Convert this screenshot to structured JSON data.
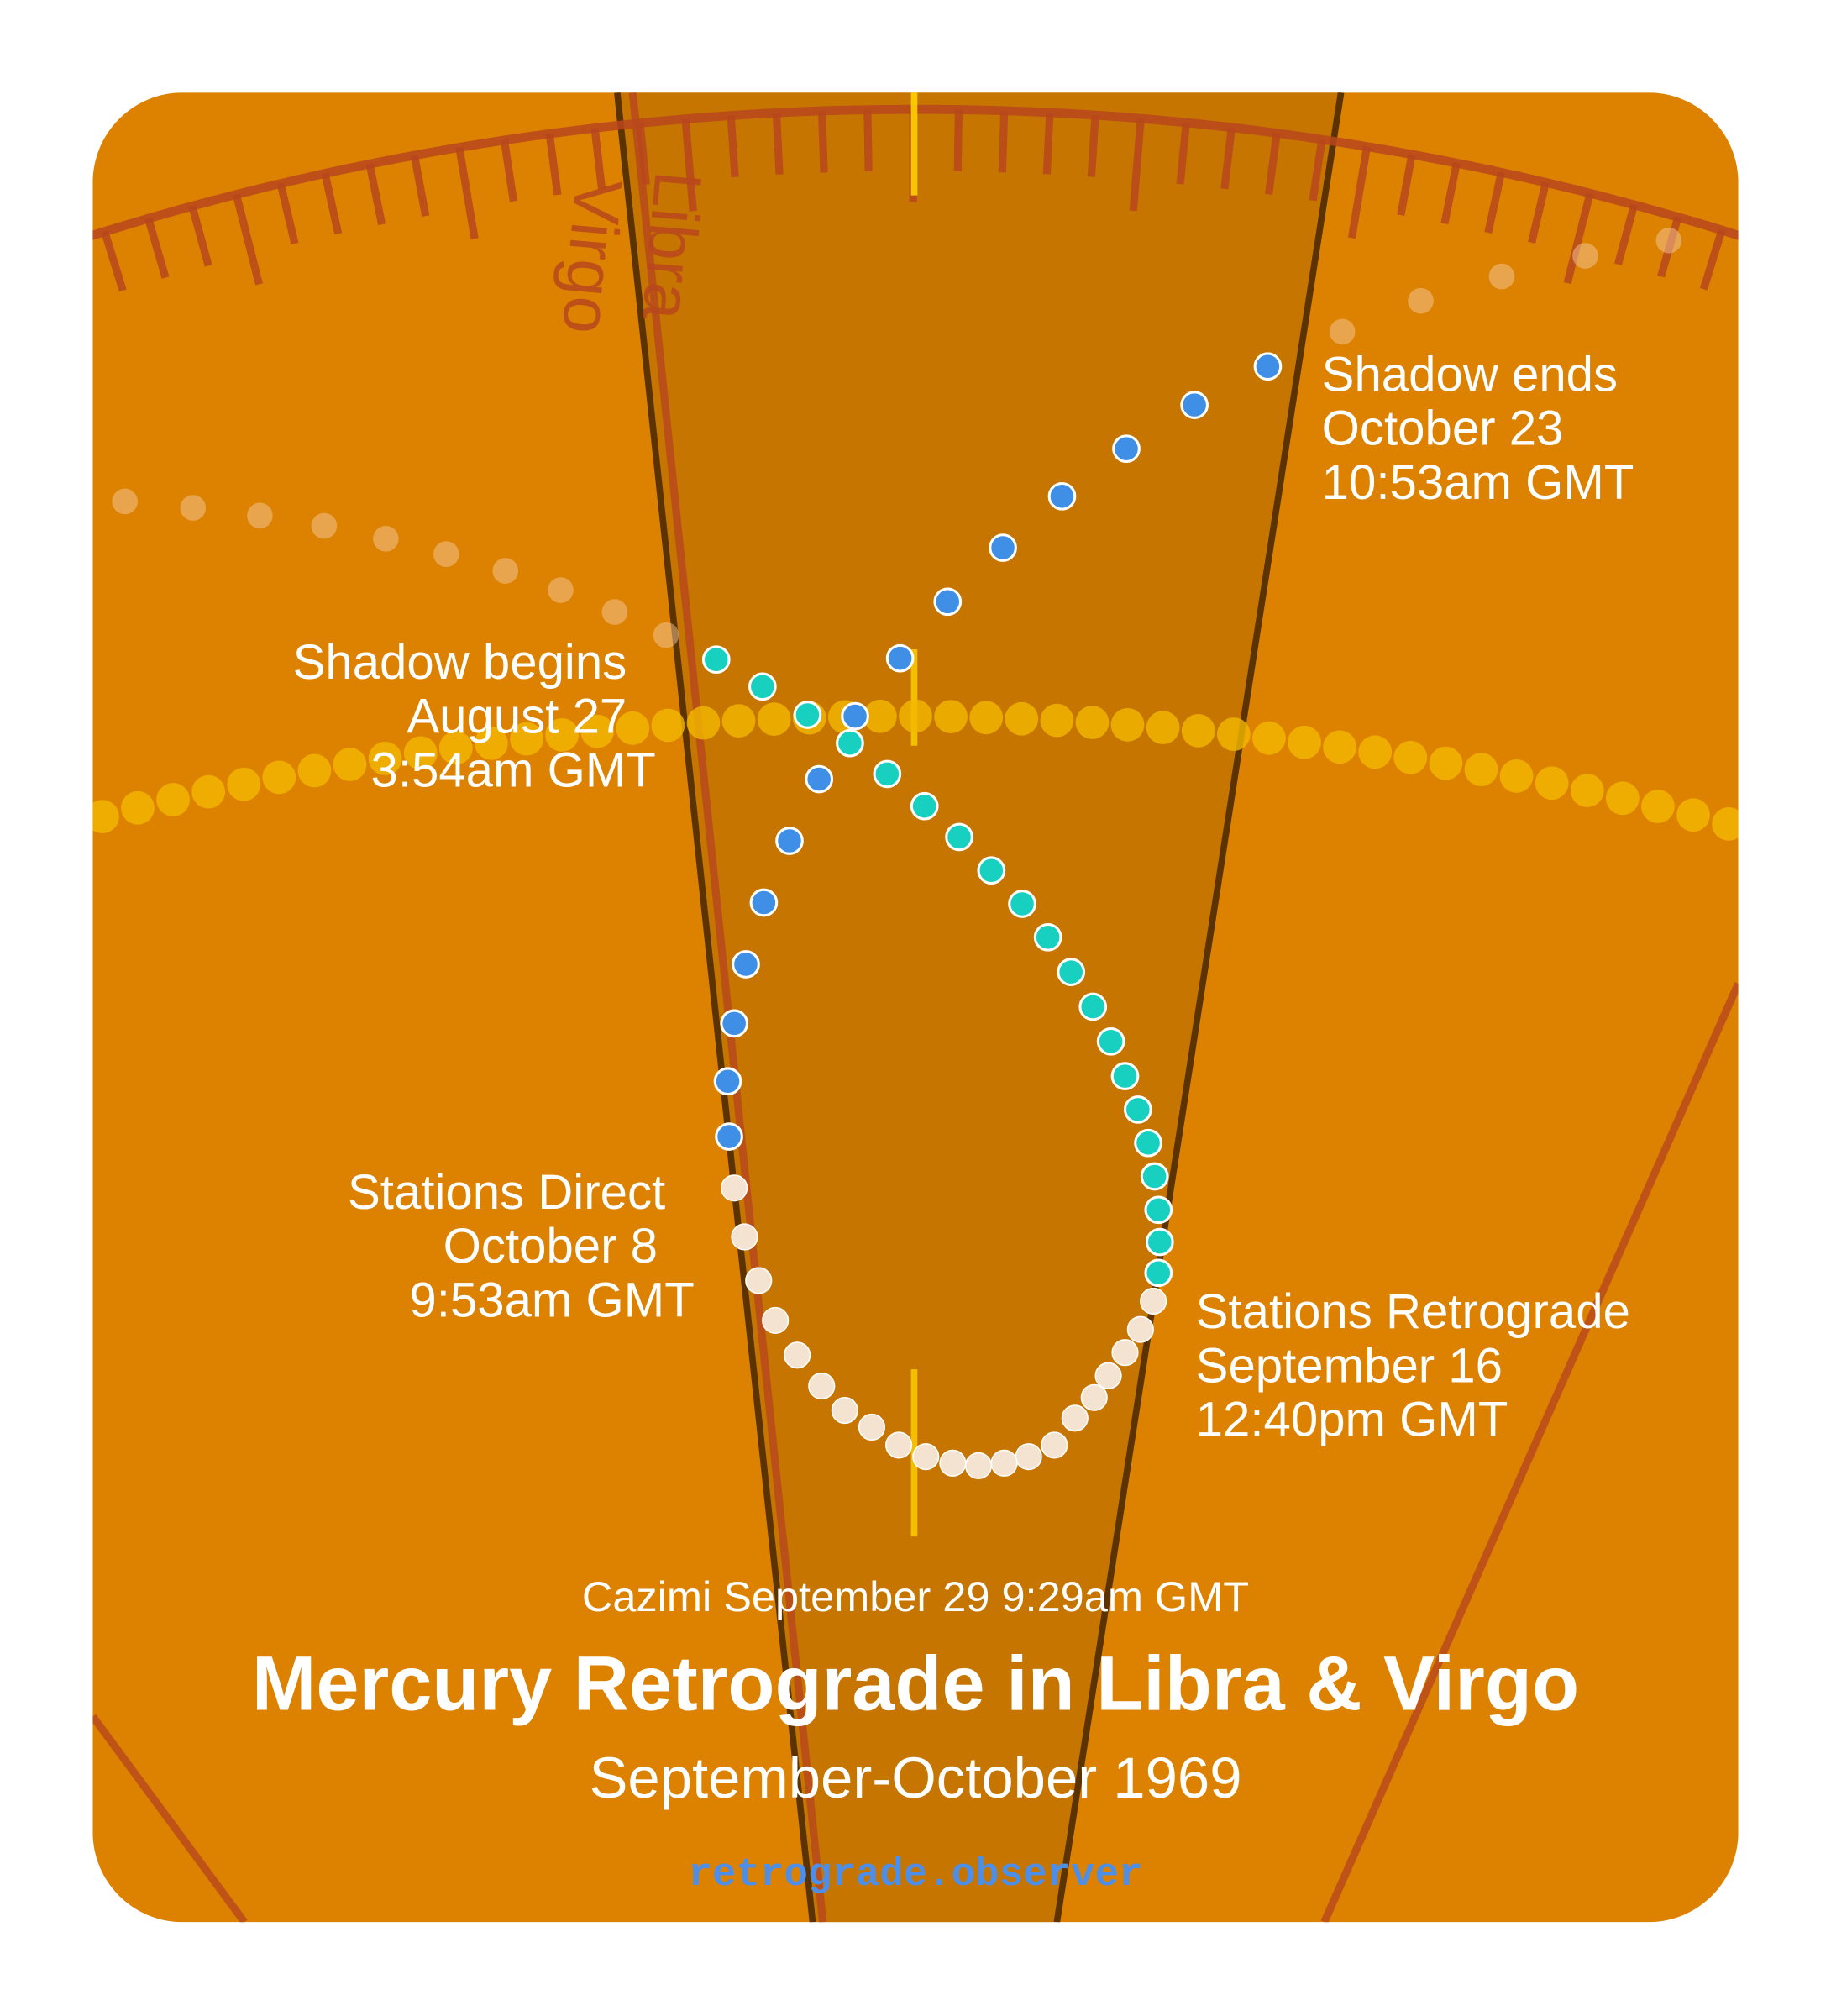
{
  "colors": {
    "background": "#dd8200",
    "shadow_zone": "#c67500",
    "ecliptic": "#b8471d",
    "sun_path": "#f2b800",
    "pre_shadow": "#17d0c0",
    "retrograde": "#f3e3d0",
    "post_shadow": "#3f8fe6",
    "footer": "#4d8fe8"
  },
  "signs": [
    "Virgo",
    "Libra"
  ],
  "events": {
    "shadow_begins": [
      "Shadow begins",
      "August 27",
      "3:54am GMT"
    ],
    "stations_retrograde": [
      "Stations Retrograde",
      "September 16",
      "12:40pm GMT"
    ],
    "stations_direct": [
      "Stations Direct",
      "October 8",
      "9:53am GMT"
    ],
    "shadow_ends": [
      "Shadow ends",
      "October 23",
      "10:53am GMT"
    ]
  },
  "cazimi": "Cazimi September 29 9:29am GMT",
  "title": "Mercury Retrograde in Libra & Virgo",
  "subtitle": "September-October 1969",
  "footer": "retrograde.observer"
}
